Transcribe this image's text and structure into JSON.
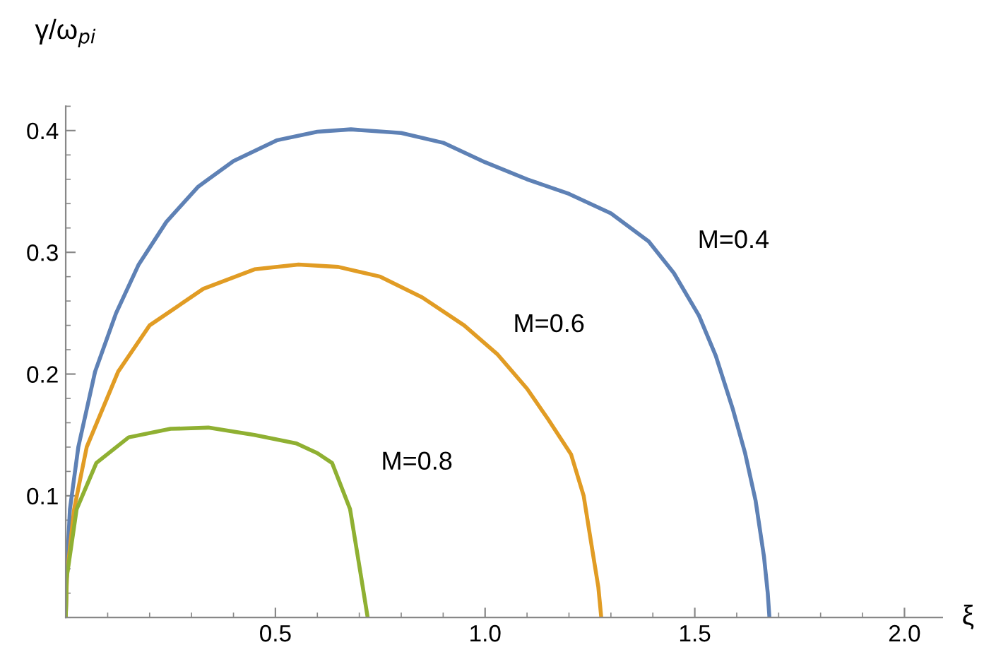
{
  "chart_data": {
    "type": "line",
    "xlabel": "ξ",
    "ylabel": "γ/ω$_{pi}$",
    "xlim": [
      0,
      2.09
    ],
    "ylim": [
      0,
      0.42
    ],
    "xticks": [
      0.5,
      {
        "value": 1,
        "label": "1.0"
      },
      1.5,
      {
        "value": 2,
        "label": "2.0"
      }
    ],
    "yticks": [
      0.1,
      0.2,
      0.3,
      0.4
    ],
    "grid": false,
    "legend": false,
    "marker": "none",
    "line_style": "solid",
    "series": [
      {
        "name": "M=0.4",
        "color": "#5e81b5",
        "x": [
          0,
          0.003,
          0.01,
          0.03,
          0.07,
          0.12,
          0.174,
          0.24,
          0.316,
          0.4,
          0.503,
          0.6,
          0.68,
          0.8,
          0.9,
          1.0,
          1.1,
          1.2,
          1.3,
          1.39,
          1.45,
          1.51,
          1.55,
          1.59,
          1.62,
          1.645,
          1.665,
          1.674,
          1.678
        ],
        "values": [
          0,
          0.04,
          0.089,
          0.14,
          0.202,
          0.25,
          0.29,
          0.325,
          0.354,
          0.375,
          0.392,
          0.399,
          0.401,
          0.398,
          0.39,
          0.374,
          0.36,
          0.348,
          0.332,
          0.309,
          0.283,
          0.248,
          0.215,
          0.172,
          0.135,
          0.096,
          0.05,
          0.02,
          0
        ]
      },
      {
        "name": "M=0.6",
        "color": "#e19c24",
        "x": [
          0,
          0.003,
          0.02,
          0.05,
          0.125,
          0.2,
          0.328,
          0.45,
          0.555,
          0.65,
          0.75,
          0.85,
          0.95,
          1.03,
          1.1,
          1.15,
          1.205,
          1.235,
          1.254,
          1.27,
          1.277
        ],
        "values": [
          0,
          0.035,
          0.089,
          0.14,
          0.202,
          0.24,
          0.27,
          0.286,
          0.29,
          0.288,
          0.28,
          0.263,
          0.24,
          0.216,
          0.188,
          0.163,
          0.134,
          0.1,
          0.059,
          0.025,
          0
        ]
      },
      {
        "name": "M=0.8",
        "color": "#8fb032",
        "x": [
          0,
          0.002,
          0.026,
          0.073,
          0.15,
          0.25,
          0.34,
          0.45,
          0.55,
          0.6,
          0.635,
          0.678,
          0.705,
          0.72
        ],
        "values": [
          0,
          0.032,
          0.089,
          0.127,
          0.148,
          0.155,
          0.156,
          0.15,
          0.143,
          0.135,
          0.127,
          0.089,
          0.032,
          0
        ]
      }
    ]
  }
}
